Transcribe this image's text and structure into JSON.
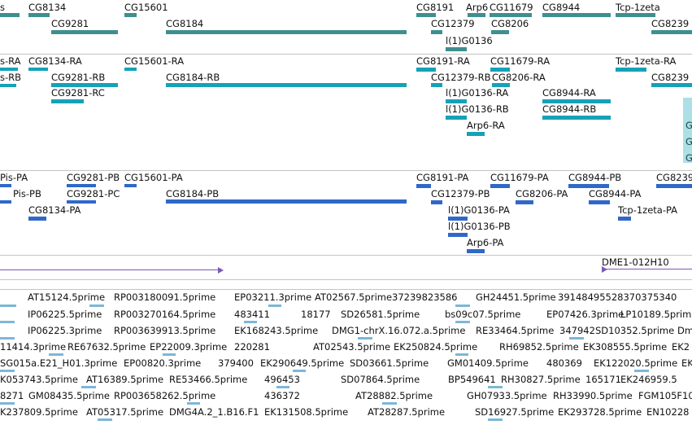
{
  "colors": {
    "gene_track": "#3f8f8f",
    "transcript_track": "#15a2b8",
    "protein_track": "#2f68c8",
    "clone_track": "#7a5ab5",
    "est_track": "#7db7d8"
  },
  "gene_track": {
    "labels": [
      "s",
      "CG8134",
      "CG15601",
      "CG9281",
      "CG8184",
      "CG8191",
      "Arp6",
      "CG11679",
      "CG8944",
      "Tcp-1zeta",
      "CG12379",
      "CG8206",
      "CG8239",
      "l(1)G0136"
    ]
  },
  "transcript_track": {
    "labels": [
      "s-RA",
      "CG8134-RA",
      "CG15601-RA",
      "s-RB",
      "CG9281-RB",
      "CG8184-RB",
      "CG9281-RC",
      "CG8191-RA",
      "CG11679-RA",
      "Tcp-1zeta-RA",
      "CG12379-RB",
      "CG8206-RA",
      "CG8239",
      "l(1)G0136-RA",
      "CG8944-RA",
      "l(1)G0136-RB",
      "CG8944-RB",
      "Arp6-RA",
      "G",
      "G",
      "G"
    ]
  },
  "protein_track": {
    "labels": [
      "Pis-PA",
      "CG9281-PB",
      "CG15601-PA",
      "Pis-PB",
      "CG9281-PC",
      "CG8134-PA",
      "CG8184-PB",
      "CG8191-PA",
      "CG11679-PA",
      "CG8944-PB",
      "CG8239",
      "CG12379-PB",
      "CG8206-PA",
      "CG8944-PA",
      "l(1)G0136-PA",
      "Tcp-1zeta-PA",
      "l(1)G0136-PB",
      "Arp6-PA"
    ]
  },
  "clone_track": {
    "labels": [
      "DME1-012H10"
    ]
  },
  "est_track": {
    "rows": [
      [
        "AT15124.5prime",
        "RP003180091.5prime",
        "EP03211.3prime",
        "AT02567.5prime",
        "37239823586",
        "GH24451.5prime",
        "39148495528370375340"
      ],
      [
        "IP06225.5prime",
        "RP003270164.5prime",
        "483411",
        "18177",
        "SD26581.5prime",
        "bs09c07.5prime",
        "EP07426.3prime",
        "LP10189.5prime"
      ],
      [
        "IP06225.3prime",
        "RP003639913.5prime",
        "EK168243.5prime",
        "DMG1-chrX.16.072.a.5prime",
        "RE33464.5prime",
        "347942",
        "SD10352.5prime",
        "Dm"
      ],
      [
        "11414.3prime",
        "RE67632.5prime",
        "EP22009.3prime",
        "220281",
        "AT02543.5prime",
        "EK250824.5prime",
        "RH69852.5prime",
        "EK308555.5prime",
        "EK2"
      ],
      [
        "SG015a.E21_H01.3prime",
        "EP00820.3prime",
        "379400",
        "EK290649.5prime",
        "SD03661.5prime",
        "GM01409.5prime",
        "480369",
        "EK122020.5prime",
        "EK"
      ],
      [
        "K053743.5prime",
        "AT16389.5prime",
        "RE53466.5prime",
        "496453",
        "SD07864.5prime",
        "BP549641",
        "RH30827.5prime",
        "165171",
        "EK246959.5"
      ],
      [
        "8271",
        "GM08435.5prime",
        "RP003658262.5prime",
        "436372",
        "AT28882.5prime",
        "GH07933.5prime",
        "RH33990.5prime",
        "FGM105F10"
      ],
      [
        "K237809.5prime",
        "AT05317.5prime",
        "DMG4A.2_1.B16.F1",
        "EK131508.5prime",
        "AT28287.5prime",
        "SD16927.5prime",
        "EK293728.5prime",
        "EN10228"
      ]
    ]
  }
}
